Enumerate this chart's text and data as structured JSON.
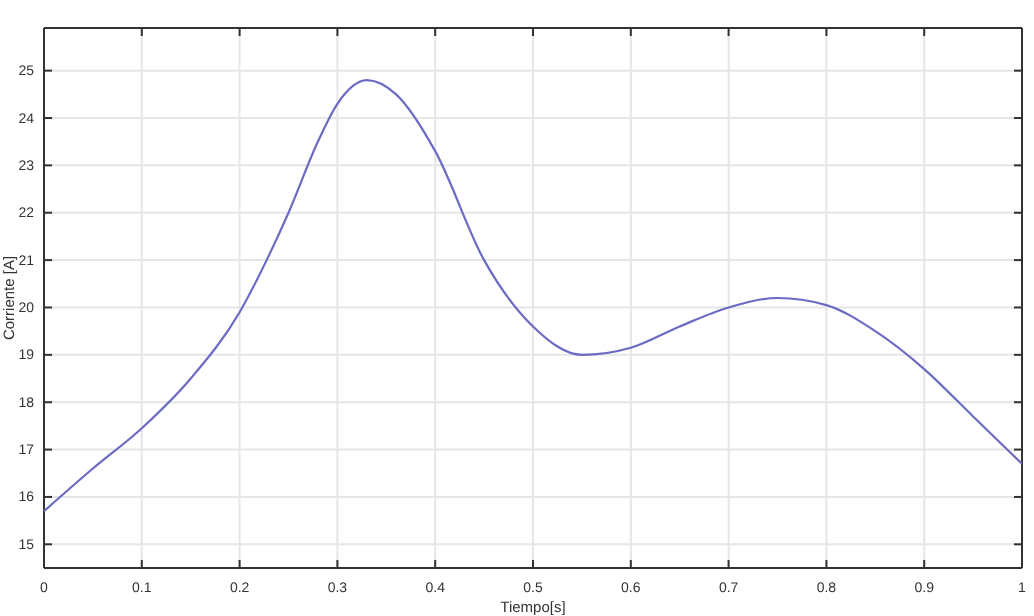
{
  "chart_data": {
    "type": "line",
    "xlabel": "Tiempo[s]",
    "ylabel": "Corriente [A]",
    "xlim": [
      0,
      1
    ],
    "xticks": [
      0,
      0.1,
      0.2,
      0.3,
      0.4,
      0.5,
      0.6,
      0.7,
      0.8,
      0.9,
      1
    ],
    "ylim": [
      14.5,
      25.9
    ],
    "yticks": [
      15,
      16,
      17,
      18,
      19,
      20,
      21,
      22,
      23,
      24,
      25
    ],
    "grid": true,
    "series": [
      {
        "color": "#6b6bc4",
        "x": [
          0,
          0.05,
          0.1,
          0.15,
          0.2,
          0.23,
          0.25,
          0.28,
          0.3,
          0.33,
          0.36,
          0.4,
          0.45,
          0.5,
          0.55,
          0.6,
          0.65,
          0.7,
          0.75,
          0.8,
          0.85,
          0.9,
          0.95,
          1
        ],
        "values": [
          15.7,
          16.6,
          17.45,
          18.5,
          19.9,
          21.1,
          22.0,
          23.5,
          24.3,
          24.8,
          24.5,
          23.3,
          21.0,
          19.6,
          19.0,
          19.15,
          19.6,
          20.0,
          20.2,
          20.05,
          19.5,
          18.7,
          17.7,
          16.7
        ]
      }
    ]
  }
}
